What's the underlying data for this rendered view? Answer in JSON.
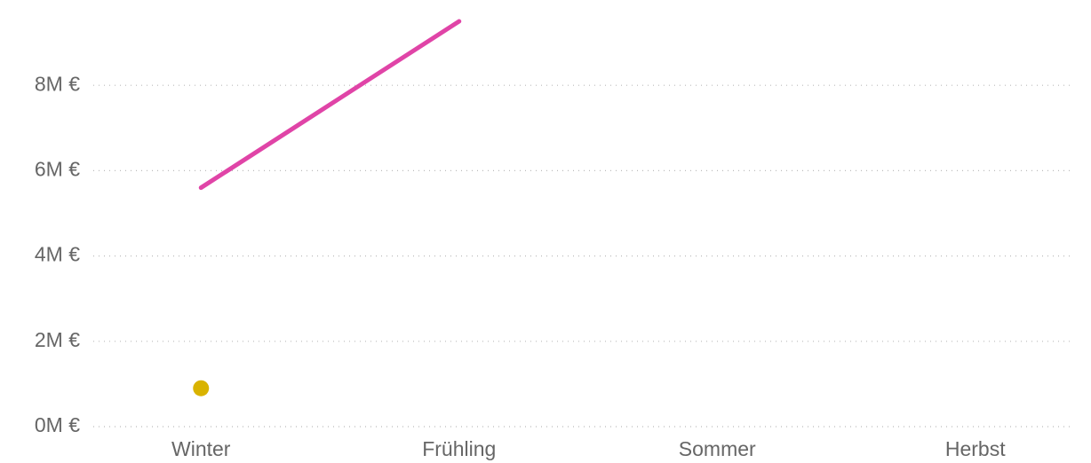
{
  "chart_data": {
    "type": "line",
    "categories": [
      "Winter",
      "Frühling",
      "Sommer",
      "Herbst"
    ],
    "series": [
      {
        "color": "#e044a7",
        "values": [
          5.6,
          9.5,
          null,
          null
        ]
      },
      {
        "color": "#d9b300",
        "values": [
          0.9,
          null,
          null,
          null
        ]
      }
    ],
    "ylim": [
      0,
      10
    ],
    "yticks": [
      {
        "value": 0,
        "label": "0M €"
      },
      {
        "value": 2,
        "label": "2M €"
      },
      {
        "value": 4,
        "label": "4M €"
      },
      {
        "value": 6,
        "label": "6M €"
      },
      {
        "value": 8,
        "label": "8M €"
      }
    ],
    "grid": true
  }
}
